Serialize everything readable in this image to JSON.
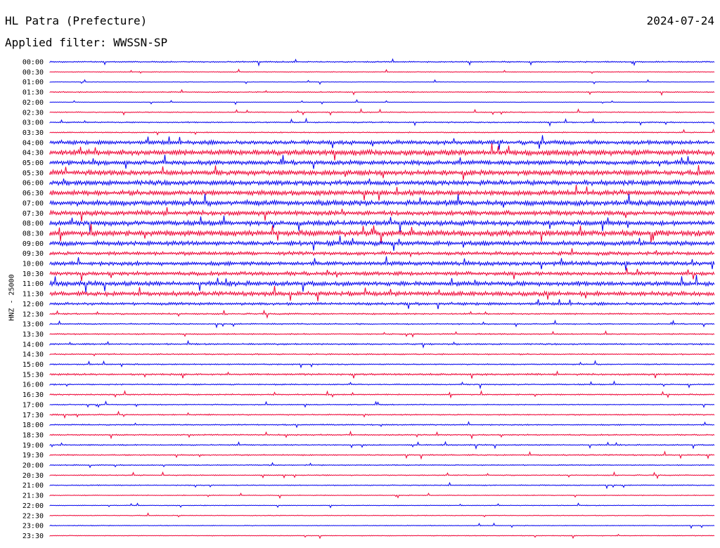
{
  "header": {
    "station": "HL Patra (Prefecture)",
    "date": "2024-07-24",
    "filter": "Applied filter: WWSSN-SP"
  },
  "channel_label": "HNZ - 25000",
  "colors": {
    "odd": "#0000ee",
    "even": "#ee0033"
  },
  "chart_data": {
    "type": "line",
    "title": "HL Patra (Prefecture)",
    "ylabel": "HNZ - 25000",
    "xlabel": "",
    "categories": [
      "00:00",
      "00:30",
      "01:00",
      "01:30",
      "02:00",
      "02:30",
      "03:00",
      "03:30",
      "04:00",
      "04:30",
      "05:00",
      "05:30",
      "06:00",
      "06:30",
      "07:00",
      "07:30",
      "08:00",
      "08:30",
      "09:00",
      "09:30",
      "10:00",
      "10:30",
      "11:00",
      "11:30",
      "12:00",
      "12:30",
      "13:00",
      "13:30",
      "14:00",
      "14:30",
      "15:00",
      "15:30",
      "16:00",
      "16:30",
      "17:00",
      "17:30",
      "18:00",
      "18:30",
      "19:00",
      "19:30",
      "20:00",
      "20:30",
      "21:00",
      "21:30",
      "22:00",
      "22:30",
      "23:00",
      "23:30"
    ],
    "series": [
      {
        "values": [
          0.5,
          0.3,
          0.2,
          0.4,
          0.2,
          0.4,
          0.5,
          0.4,
          1.6,
          2.2,
          1.8,
          2.0,
          1.9,
          2.0,
          2.1,
          1.8,
          1.9,
          2.2,
          1.8,
          1.4,
          1.6,
          1.5,
          1.8,
          1.7,
          1.1,
          0.6,
          0.5,
          0.5,
          0.6,
          0.5,
          0.5,
          0.7,
          0.5,
          0.5,
          0.4,
          0.5,
          0.5,
          0.5,
          0.5,
          0.5,
          0.4,
          0.4,
          0.4,
          0.3,
          0.3,
          0.3,
          0.3,
          0.3
        ]
      }
    ],
    "grid": false,
    "legend": "none"
  }
}
